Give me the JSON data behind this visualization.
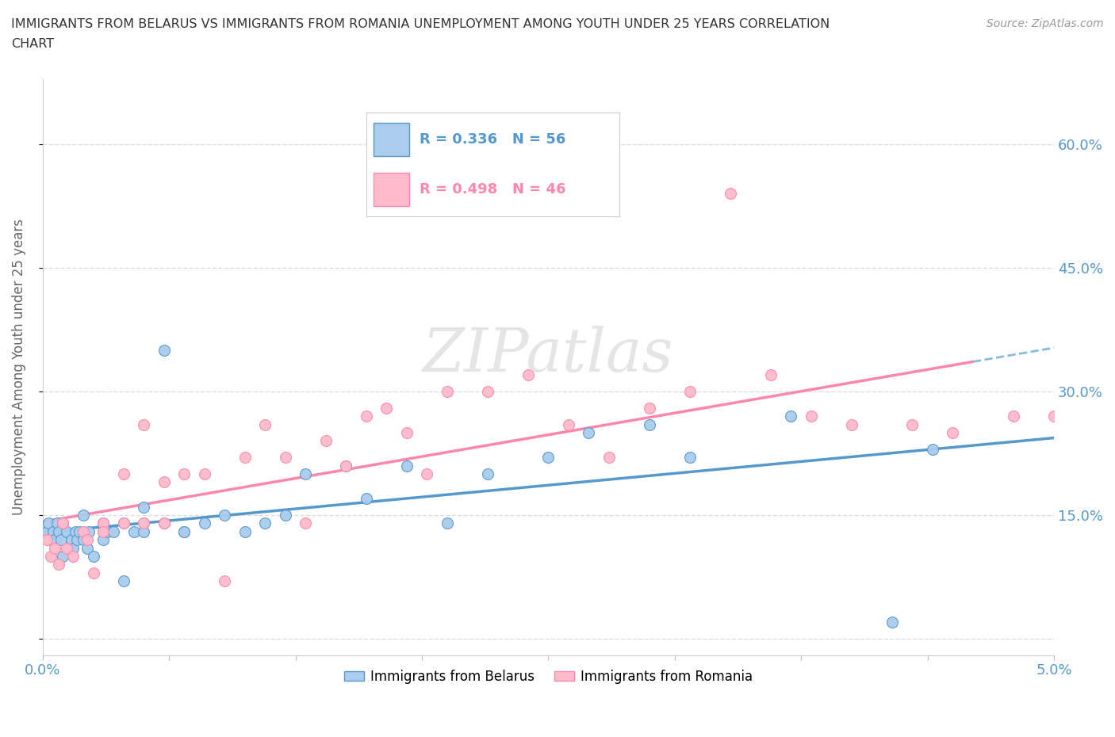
{
  "title_line1": "IMMIGRANTS FROM BELARUS VS IMMIGRANTS FROM ROMANIA UNEMPLOYMENT AMONG YOUTH UNDER 25 YEARS CORRELATION",
  "title_line2": "CHART",
  "source": "Source: ZipAtlas.com",
  "ylabel": "Unemployment Among Youth under 25 years",
  "xlim": [
    0.0,
    0.05
  ],
  "ylim": [
    -0.02,
    0.68
  ],
  "yticks": [
    0.0,
    0.15,
    0.3,
    0.45,
    0.6
  ],
  "ytick_labels": [
    "",
    "15.0%",
    "30.0%",
    "45.0%",
    "60.0%"
  ],
  "grid_color": "#dddddd",
  "background_color": "#ffffff",
  "belarus_color": "#aaccee",
  "romania_color": "#ffbbcc",
  "belarus_line_color": "#5599cc",
  "romania_line_color": "#ff88aa",
  "dashed_line_color": "#88bbdd",
  "R_belarus": 0.336,
  "N_belarus": 56,
  "R_romania": 0.498,
  "N_romania": 46,
  "belarus_scatter_x": [
    0.0002,
    0.0003,
    0.0004,
    0.0005,
    0.0006,
    0.0007,
    0.0008,
    0.0009,
    0.001,
    0.001,
    0.0012,
    0.0013,
    0.0014,
    0.0015,
    0.0016,
    0.0017,
    0.0018,
    0.002,
    0.002,
    0.002,
    0.0022,
    0.0023,
    0.0025,
    0.003,
    0.003,
    0.003,
    0.0032,
    0.0035,
    0.004,
    0.004,
    0.0045,
    0.005,
    0.005,
    0.005,
    0.006,
    0.006,
    0.007,
    0.007,
    0.008,
    0.009,
    0.01,
    0.011,
    0.012,
    0.013,
    0.015,
    0.016,
    0.018,
    0.02,
    0.022,
    0.025,
    0.027,
    0.03,
    0.032,
    0.037,
    0.042,
    0.044
  ],
  "belarus_scatter_y": [
    0.13,
    0.14,
    0.12,
    0.13,
    0.12,
    0.14,
    0.13,
    0.12,
    0.14,
    0.1,
    0.13,
    0.11,
    0.12,
    0.11,
    0.13,
    0.12,
    0.13,
    0.13,
    0.12,
    0.15,
    0.11,
    0.13,
    0.1,
    0.14,
    0.13,
    0.12,
    0.13,
    0.13,
    0.07,
    0.14,
    0.13,
    0.14,
    0.16,
    0.13,
    0.14,
    0.35,
    0.13,
    0.13,
    0.14,
    0.15,
    0.13,
    0.14,
    0.15,
    0.2,
    0.21,
    0.17,
    0.21,
    0.14,
    0.2,
    0.22,
    0.25,
    0.26,
    0.22,
    0.27,
    0.02,
    0.23
  ],
  "romania_scatter_x": [
    0.0002,
    0.0004,
    0.0006,
    0.0008,
    0.001,
    0.0012,
    0.0015,
    0.002,
    0.0022,
    0.0025,
    0.003,
    0.003,
    0.004,
    0.004,
    0.005,
    0.005,
    0.006,
    0.006,
    0.007,
    0.008,
    0.009,
    0.01,
    0.011,
    0.012,
    0.013,
    0.014,
    0.015,
    0.016,
    0.017,
    0.018,
    0.019,
    0.02,
    0.022,
    0.024,
    0.026,
    0.028,
    0.03,
    0.032,
    0.034,
    0.036,
    0.038,
    0.04,
    0.043,
    0.045,
    0.048,
    0.05
  ],
  "romania_scatter_y": [
    0.12,
    0.1,
    0.11,
    0.09,
    0.14,
    0.11,
    0.1,
    0.13,
    0.12,
    0.08,
    0.14,
    0.13,
    0.2,
    0.14,
    0.14,
    0.26,
    0.19,
    0.14,
    0.2,
    0.2,
    0.07,
    0.22,
    0.26,
    0.22,
    0.14,
    0.24,
    0.21,
    0.27,
    0.28,
    0.25,
    0.2,
    0.3,
    0.3,
    0.32,
    0.26,
    0.22,
    0.28,
    0.3,
    0.54,
    0.32,
    0.27,
    0.26,
    0.26,
    0.25,
    0.27,
    0.27
  ],
  "legend_label_belarus": "Immigrants from Belarus",
  "legend_label_romania": "Immigrants from Romania",
  "watermark": "ZIPatlas"
}
